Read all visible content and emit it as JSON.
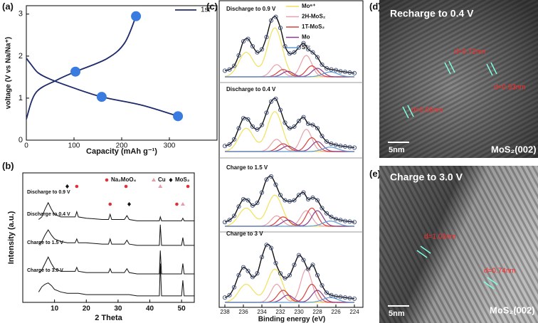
{
  "chart_data": [
    {
      "type": "line",
      "panel": "(a)",
      "xlabel": "Capacity (mAh g⁻¹)",
      "ylabel": "voltage (V vs Na/Na⁺)",
      "x": [
        0,
        10,
        25,
        50,
        95,
        158,
        243,
        318,
        null,
        0,
        20,
        64,
        103,
        169,
        206,
        230
      ],
      "series": [
        {
          "name": "1st",
          "color": "#1f2a6b",
          "values": [
            1.95,
            1.8,
            1.6,
            1.45,
            1.26,
            1.03,
            0.83,
            0.57,
            null,
            0.5,
            1.13,
            1.43,
            1.63,
            1.94,
            2.31,
            2.95
          ]
        }
      ],
      "markers": {
        "color": "#3a7be0",
        "x": [
          103,
          158,
          318,
          230
        ],
        "values": [
          1.63,
          1.03,
          0.57,
          2.95
        ]
      },
      "xlim": [
        0,
        400
      ],
      "xticks": [
        0,
        100,
        200,
        300
      ],
      "ylim": [
        0,
        3.2
      ],
      "yticks": [
        0,
        1,
        2,
        3
      ]
    },
    {
      "type": "xrd",
      "panel": "(b)",
      "xlabel": "2 Theta",
      "ylabel": "Intensity (a.u.)",
      "x": [
        5,
        6,
        7,
        8,
        9,
        10,
        12,
        14,
        16.5,
        17,
        17.5,
        20,
        25,
        27,
        27.5,
        28,
        30,
        32,
        32.8,
        33.5,
        36,
        40,
        43,
        43.3,
        43.7,
        46,
        48,
        50,
        50.4,
        50.8,
        52,
        54
      ],
      "series": [
        {
          "name": "Discharge to 0.9 V",
          "color": "#111111",
          "values": [
            64,
            66,
            72,
            77,
            72,
            68,
            66,
            66,
            66,
            70,
            66,
            65,
            64,
            64,
            68,
            64,
            64,
            64,
            67,
            64,
            63,
            63,
            63,
            66,
            63,
            63,
            63,
            63,
            65,
            63,
            63,
            63
          ]
        },
        {
          "name": "Discharge to 0.4 V",
          "color": "#111111",
          "values": [
            45,
            47,
            52,
            56,
            52,
            49,
            47,
            46,
            46,
            49,
            46,
            46,
            45,
            45,
            49,
            45,
            45,
            45,
            48,
            45,
            44,
            44,
            44,
            60,
            44,
            44,
            44,
            44,
            50,
            44,
            44,
            44
          ]
        },
        {
          "name": "Charge to 1.5 V",
          "color": "#111111",
          "values": [
            23,
            25,
            30,
            35,
            30,
            26,
            24,
            24,
            24,
            27,
            24,
            23,
            23,
            23,
            26,
            23,
            23,
            23,
            26,
            23,
            22,
            22,
            22,
            40,
            22,
            22,
            22,
            22,
            30,
            22,
            22,
            22
          ]
        },
        {
          "name": "Charge to 3.0 V",
          "color": "#111111",
          "values": [
            8,
            12,
            14,
            15,
            13,
            10,
            8,
            7,
            7,
            7,
            7,
            6,
            6,
            6,
            6,
            6,
            6,
            6,
            6,
            6,
            5,
            5,
            5,
            30,
            5,
            5,
            5,
            5,
            17,
            5,
            5,
            5
          ]
        }
      ],
      "peak_markers": [
        {
          "name": "Na₂MoO₄",
          "color": "#e0303a",
          "symbol": "circle",
          "x": [
            17,
            27.5,
            32.5,
            48.5,
            52
          ]
        },
        {
          "name": "Cu",
          "color": "#e89aa8",
          "symbol": "triangle",
          "x": [
            43.3,
            50.4
          ]
        },
        {
          "name": "MoS₂",
          "color": "#111111",
          "symbol": "diamond",
          "x": [
            14,
            33.5
          ]
        }
      ],
      "xlim": [
        0,
        54
      ],
      "xticks": [
        10,
        20,
        30,
        40,
        50
      ],
      "ylim": [
        0,
        100
      ]
    },
    {
      "type": "xps",
      "panel": "(c)",
      "xlabel": "Binding energy (eV)",
      "x": [
        238,
        237.5,
        237,
        236.5,
        236,
        235.5,
        235,
        234.5,
        234,
        233.5,
        233,
        232.5,
        232,
        231.5,
        231,
        230.5,
        230,
        229.5,
        229,
        228.5,
        228,
        227.5,
        227,
        226.5,
        226,
        225.5,
        225,
        224.5,
        224
      ],
      "xlim": [
        238,
        224
      ],
      "xticks": [
        238,
        236,
        234,
        232,
        230,
        228,
        226,
        224
      ],
      "ylim": [
        0,
        100
      ],
      "series": [
        {
          "name": "Mo⁶⁺",
          "color": "#f2e15c"
        },
        {
          "name": "2H-MoS₂",
          "color": "#e9a0a8"
        },
        {
          "name": "1T-MoS₂",
          "color": "#d9403a"
        },
        {
          "name": "Mo",
          "color": "#8e3b8a"
        },
        {
          "name": "S²⁻",
          "color": "#5b9bd5"
        }
      ],
      "data_color": "#3b4a7a",
      "spectra": [
        {
          "label": "Discharge to 0.9 V",
          "values": [
            10,
            12,
            18,
            35,
            58,
            62,
            50,
            40,
            45,
            65,
            92,
            98,
            80,
            50,
            38,
            40,
            48,
            55,
            45,
            40,
            32,
            20,
            14,
            12,
            11,
            9,
            8,
            7,
            6
          ],
          "components": [
            {
              "centers": [
                235.7,
                232.6
              ],
              "heights": [
                40,
                80
              ],
              "width": 0.8
            },
            {
              "centers": [
                229.2,
                232.4
              ],
              "heights": [
                35,
                20
              ],
              "width": 0.6
            },
            {
              "centers": [
                228.6,
                231.7
              ],
              "heights": [
                18,
                12
              ],
              "width": 0.6
            },
            {
              "centers": [
                228.0,
                231.2
              ],
              "heights": [
                14,
                9
              ],
              "width": 0.6
            },
            {
              "centers": [
                226.6
              ],
              "heights": [
                8
              ],
              "width": 0.8
            }
          ]
        },
        {
          "label": "Discharge to 0.4 V",
          "values": [
            10,
            13,
            22,
            42,
            60,
            58,
            45,
            40,
            48,
            70,
            90,
            95,
            75,
            52,
            42,
            45,
            55,
            62,
            50,
            48,
            42,
            28,
            18,
            14,
            12,
            10,
            9,
            8,
            7
          ],
          "components": [
            {
              "centers": [
                235.7,
                232.6
              ],
              "heights": [
                42,
                72
              ],
              "width": 0.8
            },
            {
              "centers": [
                229.2,
                232.4
              ],
              "heights": [
                40,
                22
              ],
              "width": 0.6
            },
            {
              "centers": [
                228.6,
                231.7
              ],
              "heights": [
                25,
                14
              ],
              "width": 0.6
            },
            {
              "centers": [
                228.0,
                231.2
              ],
              "heights": [
                18,
                10
              ],
              "width": 0.6
            },
            {
              "centers": [
                226.6
              ],
              "heights": [
                8
              ],
              "width": 0.8
            }
          ]
        },
        {
          "label": "Charge to 1.5 V",
          "values": [
            8,
            12,
            20,
            38,
            52,
            50,
            40,
            45,
            65,
            90,
            96,
            80,
            60,
            50,
            48,
            50,
            60,
            65,
            52,
            55,
            50,
            35,
            25,
            18,
            14,
            12,
            10,
            9,
            8
          ],
          "components": [
            {
              "centers": [
                235.7,
                232.6
              ],
              "heights": [
                35,
                60
              ],
              "width": 0.8
            },
            {
              "centers": [
                229.2,
                232.4
              ],
              "heights": [
                30,
                20
              ],
              "width": 0.6
            },
            {
              "centers": [
                228.6,
                231.7
              ],
              "heights": [
                35,
                18
              ],
              "width": 0.6
            },
            {
              "centers": [
                228.0,
                231.2
              ],
              "heights": [
                30,
                12
              ],
              "width": 0.6
            },
            {
              "centers": [
                226.6
              ],
              "heights": [
                10
              ],
              "width": 0.8
            }
          ]
        },
        {
          "label": "Charge to 3 V",
          "values": [
            8,
            12,
            25,
            45,
            58,
            52,
            42,
            48,
            75,
            95,
            90,
            65,
            48,
            40,
            45,
            62,
            78,
            70,
            55,
            62,
            45,
            28,
            16,
            12,
            10,
            9,
            8,
            7,
            6
          ],
          "components": [
            {
              "centers": [
                235.7,
                232.6
              ],
              "heights": [
                30,
                55
              ],
              "width": 0.8
            },
            {
              "centers": [
                229.2,
                232.4
              ],
              "heights": [
                55,
                30
              ],
              "width": 0.6
            },
            {
              "centers": [
                228.6,
                231.7
              ],
              "heights": [
                30,
                20
              ],
              "width": 0.6
            },
            {
              "centers": [
                228.0,
                231.2
              ],
              "heights": [
                20,
                12
              ],
              "width": 0.6
            },
            {
              "centers": [
                226.6
              ],
              "heights": [
                8
              ],
              "width": 0.8
            }
          ]
        }
      ]
    }
  ],
  "images": [
    {
      "panel": "(d)",
      "title": "Recharge to 0.4 V",
      "spacings": [
        "d=0.72nm",
        "d=0.93nm",
        "d=0.66nm"
      ],
      "scale_bar": "5nm",
      "plane": "MoS₂(002)"
    },
    {
      "panel": "(e)",
      "title": "Charge to 3.0 V",
      "spacings": [
        "d=1.03nm",
        "d=0.74nm"
      ],
      "scale_bar": "5nm",
      "plane": "MoS₂(002)"
    }
  ]
}
